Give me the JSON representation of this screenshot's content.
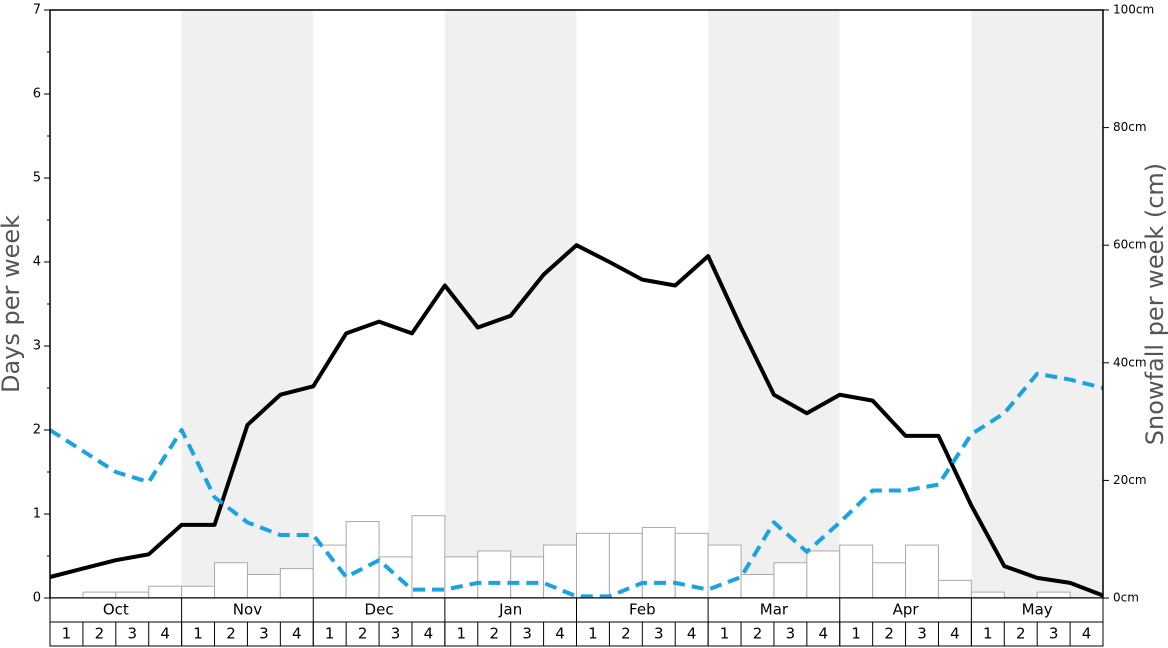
{
  "chart_data": {
    "type": "bar",
    "y_label": "Days per week",
    "y2_label": "Snowfall per week (cm)",
    "months": [
      "Oct",
      "Nov",
      "Dec",
      "Jan",
      "Feb",
      "Mar",
      "Apr",
      "May"
    ],
    "categories": [
      "1",
      "2",
      "3",
      "4",
      "1",
      "2",
      "3",
      "4",
      "1",
      "2",
      "3",
      "4",
      "1",
      "2",
      "3",
      "4",
      "1",
      "2",
      "3",
      "4",
      "1",
      "2",
      "3",
      "4",
      "1",
      "2",
      "3",
      "4",
      "1",
      "2",
      "3",
      "4"
    ],
    "x": [
      0,
      1,
      2,
      3,
      4,
      5,
      6,
      7,
      8,
      9,
      10,
      11,
      12,
      13,
      14,
      15,
      16,
      17,
      18,
      19,
      20,
      21,
      22,
      23,
      24,
      25,
      26,
      27,
      28,
      29,
      30,
      31,
      32
    ],
    "xlim": [
      0,
      32
    ],
    "ylim": [
      0,
      7
    ],
    "yticks": [
      0,
      1,
      2,
      3,
      4,
      5,
      6,
      7
    ],
    "y2lim": [
      0,
      100
    ],
    "y2ticks": [
      {
        "value": 0,
        "label": "0cm"
      },
      {
        "value": 20,
        "label": "20cm"
      },
      {
        "value": 40,
        "label": "40cm"
      },
      {
        "value": 60,
        "label": "60cm"
      },
      {
        "value": 80,
        "label": "80cm"
      },
      {
        "value": 100,
        "label": "100cm"
      }
    ],
    "shade_color": "#f0f0f0",
    "series": [
      {
        "type": "bar",
        "axis": "y2",
        "color": "#ffffff",
        "stroke": "#aaaaaa",
        "values": [
          0,
          1,
          1,
          2,
          2,
          6,
          4,
          5,
          9,
          13,
          7,
          14,
          7,
          8,
          7,
          9,
          11,
          11,
          12,
          11,
          9,
          4,
          6,
          8,
          9,
          6,
          9,
          3,
          1,
          0,
          1,
          0
        ]
      },
      {
        "type": "line",
        "color": "#000000",
        "dashed": false,
        "values": [
          0.25,
          0.35,
          0.45,
          0.52,
          0.87,
          0.87,
          2.06,
          2.42,
          2.52,
          3.15,
          3.29,
          3.15,
          3.72,
          3.22,
          3.36,
          3.85,
          4.2,
          4.0,
          3.79,
          3.72,
          4.07,
          3.22,
          2.42,
          2.2,
          2.42,
          2.35,
          1.93,
          1.93,
          1.1,
          0.38,
          0.24,
          0.18,
          0.03
        ]
      },
      {
        "type": "line",
        "color": "#1aa3e0",
        "dashed": true,
        "values": [
          2.0,
          1.75,
          1.5,
          1.38,
          2.0,
          1.2,
          0.9,
          0.75,
          0.75,
          0.25,
          0.45,
          0.1,
          0.1,
          0.18,
          0.18,
          0.18,
          0.02,
          0.02,
          0.18,
          0.18,
          0.1,
          0.25,
          0.9,
          0.55,
          0.9,
          1.28,
          1.28,
          1.35,
          1.95,
          2.2,
          2.67,
          2.6,
          2.5
        ]
      }
    ]
  }
}
